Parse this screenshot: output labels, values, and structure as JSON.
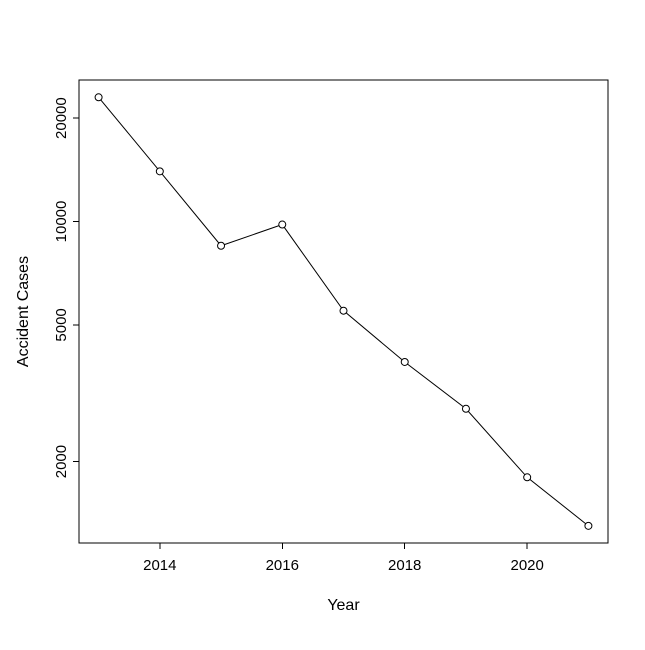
{
  "chart_data": {
    "type": "line",
    "title": "",
    "xlabel": "Year",
    "ylabel": "Accident Cases",
    "x": [
      2013,
      2014,
      2015,
      2016,
      2017,
      2018,
      2019,
      2020,
      2021
    ],
    "values": [
      23000,
      14000,
      8500,
      9800,
      5500,
      3900,
      2850,
      1800,
      1300
    ],
    "y_scale": "log10",
    "x_ticks": [
      2014,
      2016,
      2018,
      2020
    ],
    "x_tick_labels": [
      "2014",
      "2016",
      "2018",
      "2020"
    ],
    "y_ticks": [
      2000,
      5000,
      10000,
      20000
    ],
    "y_tick_labels": [
      "2000",
      "5000",
      "10000",
      "20000"
    ],
    "x_range": [
      2012.68,
      2021.32
    ],
    "y_log_range": [
      3.064,
      4.412
    ],
    "grid": false,
    "legend": "none",
    "marker": "open-circle",
    "line_color": "#000000",
    "marker_fill": "#ffffff",
    "background": "#ffffff"
  }
}
